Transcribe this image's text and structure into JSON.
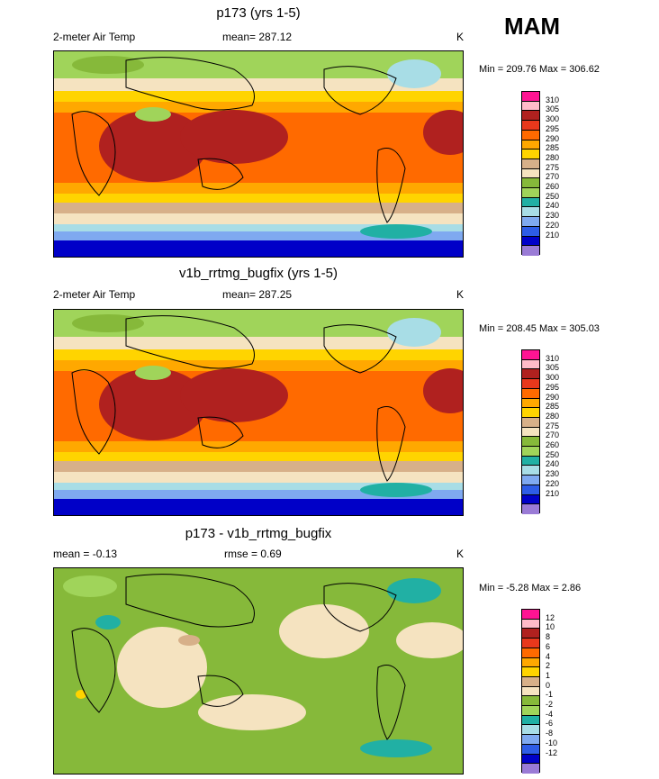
{
  "season": "MAM",
  "colors": {
    "abs_scale": [
      "#9a7bd6",
      "#0000c8",
      "#2e5ce6",
      "#7fa9f0",
      "#a8dde6",
      "#21b0a4",
      "#a0d45a",
      "#86b93a",
      "#f5e3c0",
      "#d7b089",
      "#ffd400",
      "#ffa800",
      "#ff6a00",
      "#e8381c",
      "#b0211f",
      "#ffbbc8",
      "#ff1493"
    ],
    "diff_scale": [
      "#9a7bd6",
      "#0000c8",
      "#2e5ce6",
      "#7fa9f0",
      "#a8dde6",
      "#21b0a4",
      "#a0d45a",
      "#86b93a",
      "#f5e3c0",
      "#d7b089",
      "#ffd400",
      "#ffa800",
      "#ff6a00",
      "#e8381c",
      "#b0211f",
      "#ffbbc8",
      "#ff1493"
    ]
  },
  "chart_data": [
    {
      "type": "heatmap",
      "title": "p173 (yrs 1-5)",
      "left_label": "2-meter Air Temp",
      "mean_label": "mean= 287.12",
      "units": "K",
      "minmax": "Min = 209.76 Max = 306.62",
      "colorbar_levels": [
        "310",
        "305",
        "300",
        "295",
        "290",
        "285",
        "280",
        "275",
        "270",
        "260",
        "250",
        "240",
        "230",
        "220",
        "210"
      ]
    },
    {
      "type": "heatmap",
      "title": "v1b_rrtmg_bugfix (yrs 1-5)",
      "left_label": "2-meter Air Temp",
      "mean_label": "mean= 287.25",
      "units": "K",
      "minmax": "Min = 208.45 Max = 305.03",
      "colorbar_levels": [
        "310",
        "305",
        "300",
        "295",
        "290",
        "285",
        "280",
        "275",
        "270",
        "260",
        "250",
        "240",
        "230",
        "220",
        "210"
      ]
    },
    {
      "type": "heatmap",
      "title": "p173 - v1b_rrtmg_bugfix",
      "left_label": "mean =  -0.13",
      "mean_label": "rmse =   0.69",
      "units": "K",
      "minmax": "Min =  -5.28 Max =   2.86",
      "colorbar_levels": [
        "12",
        "10",
        "8",
        "6",
        "4",
        "2",
        "1",
        "0",
        "-1",
        "-2",
        "-4",
        "-6",
        "-8",
        "-10",
        "-12"
      ]
    }
  ]
}
